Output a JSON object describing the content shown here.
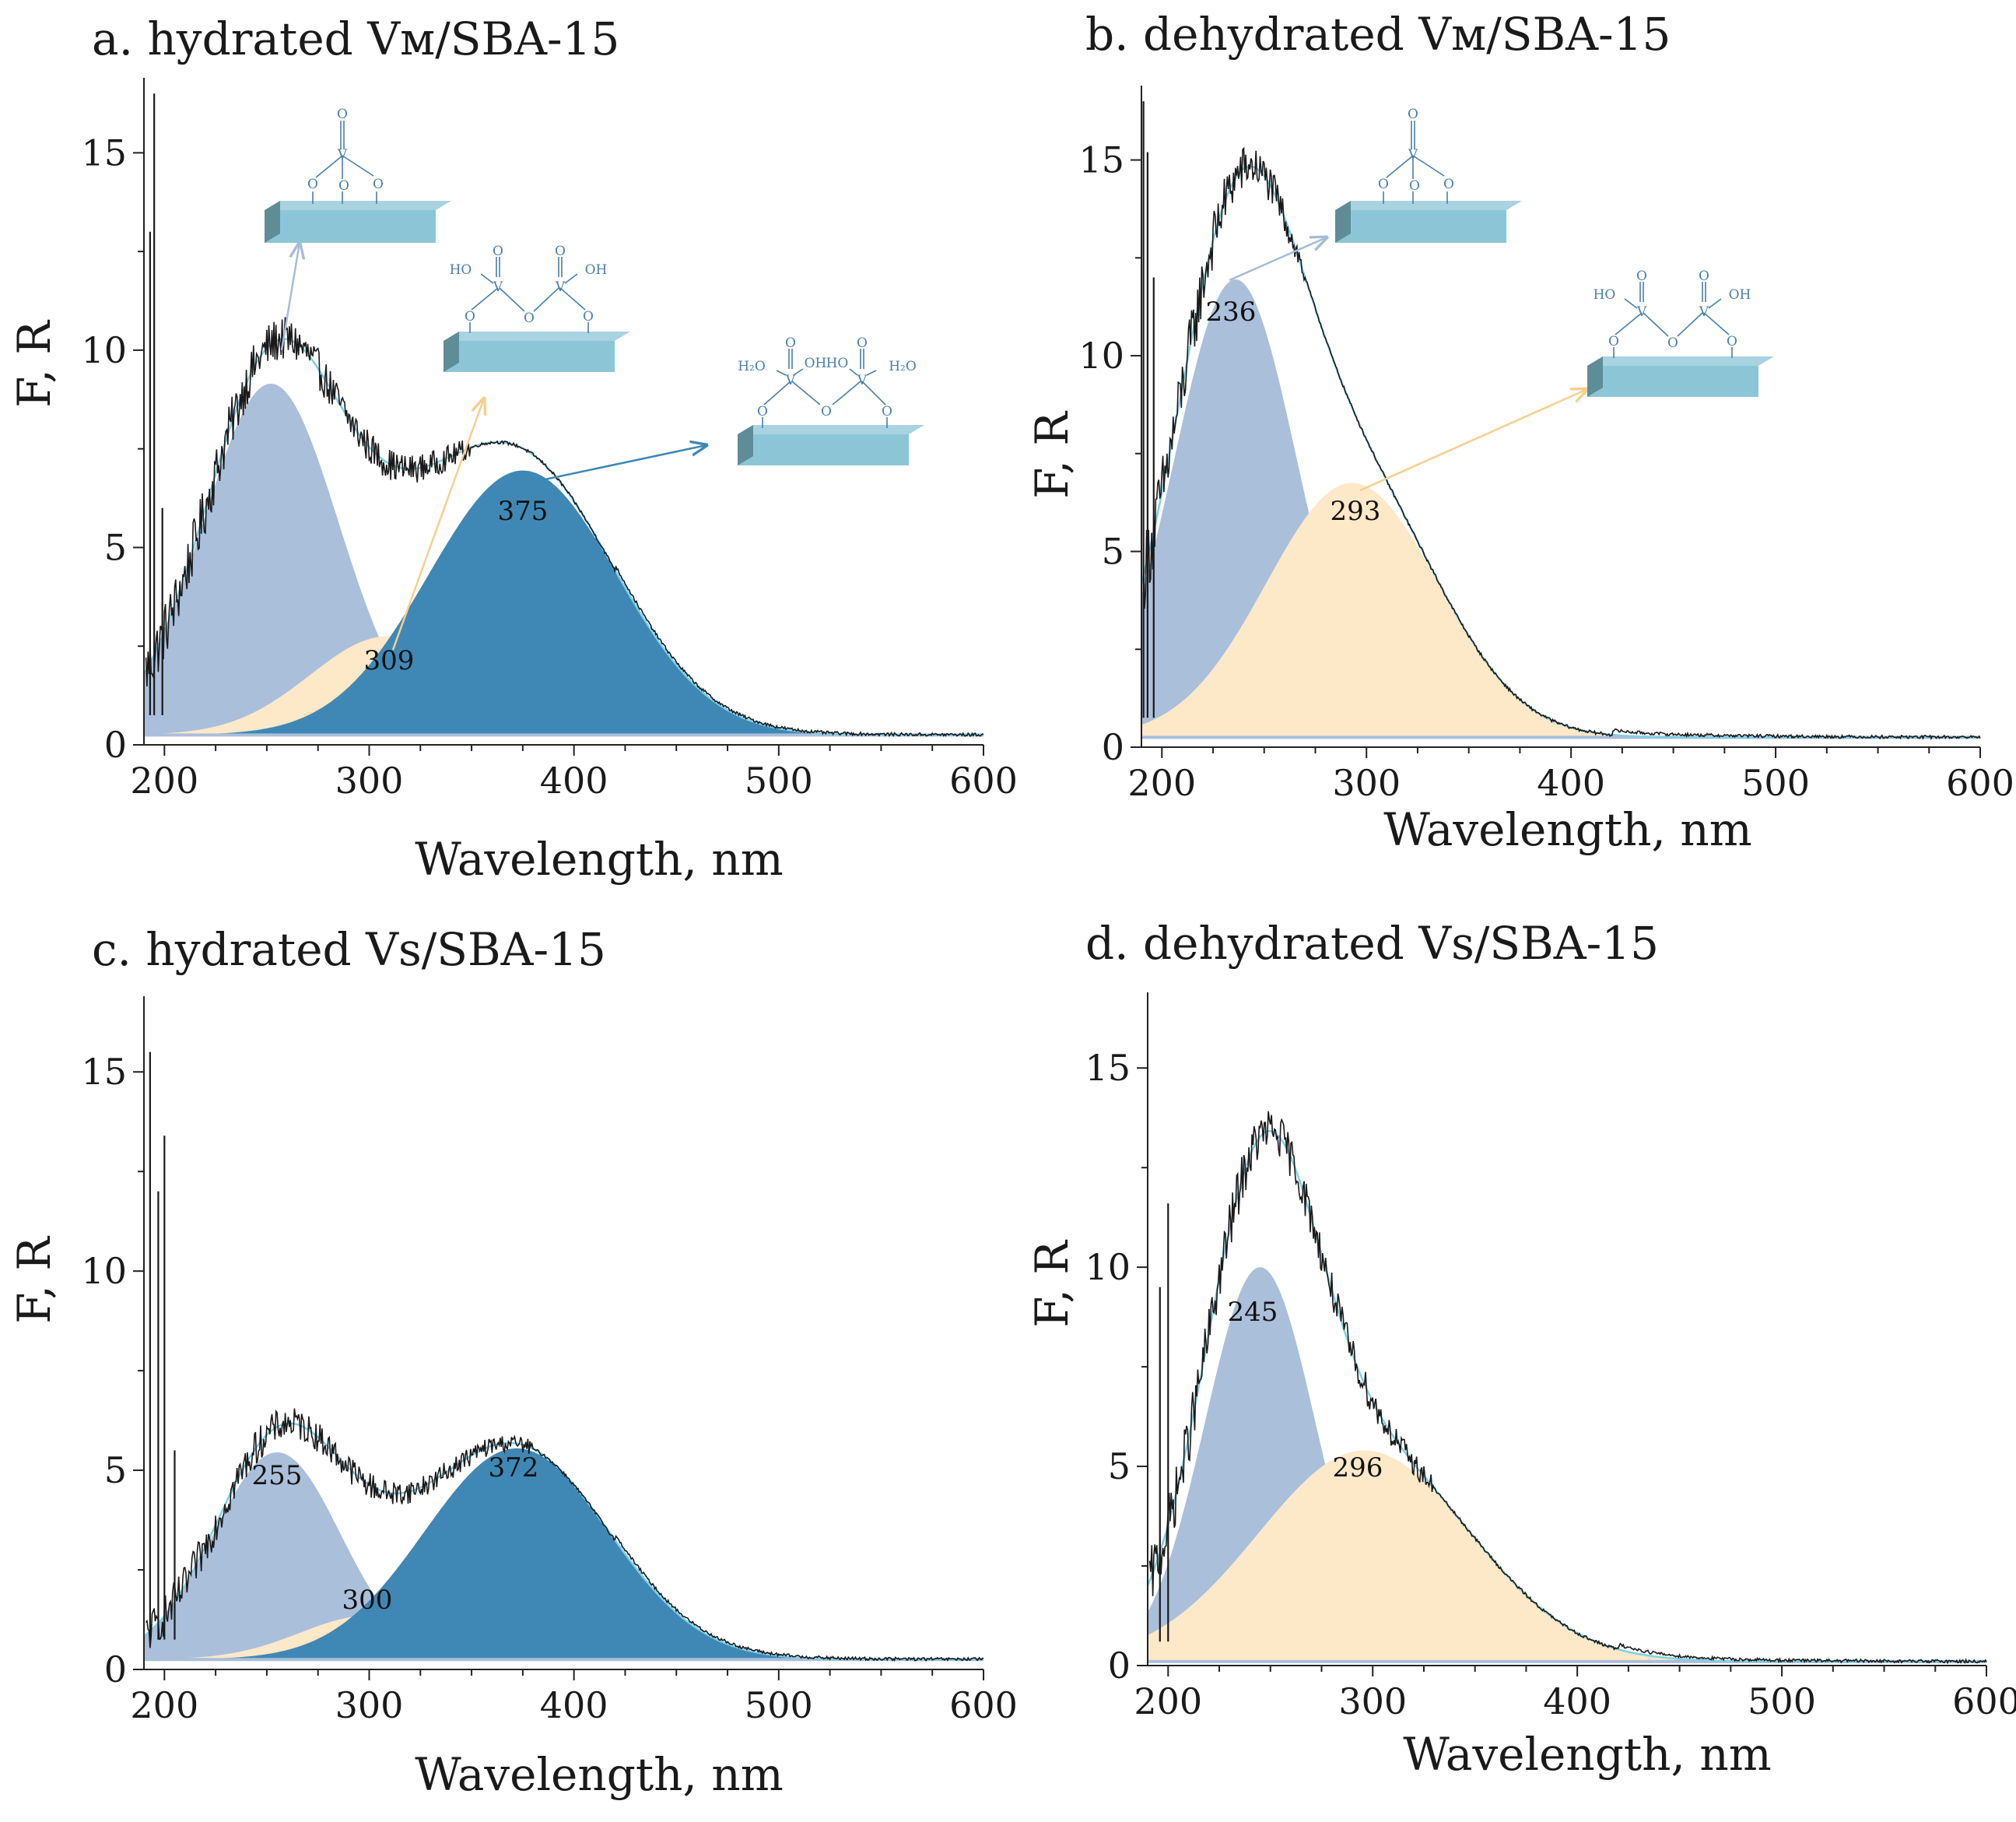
{
  "colors": {
    "peak_light_blue": "#aabfda",
    "peak_tan": "#fde8c8",
    "peak_dark_blue": "#3f88b5",
    "fit_cyan": "#7ed0e6",
    "spectrum": "#1a1a1a",
    "slab_top": "#a9d3e0",
    "slab_front": "#8cc6d6",
    "slab_side": "#5f8d97",
    "arrow_light_blue": "#a6bcd6",
    "arrow_tan": "#f6cf8f",
    "arrow_dark_blue": "#3f88b5",
    "structure": "#4a7fa8"
  },
  "structures": {
    "monomeric": {
      "o_top": "O",
      "v": "V",
      "o_bottom": [
        "O",
        "O",
        "O"
      ]
    },
    "dimeric": {
      "ho": "HO",
      "oh": "OH",
      "o_top": [
        "O",
        "O"
      ],
      "v": [
        "V",
        "V"
      ],
      "o_bridge": "O",
      "o_bottom": [
        "O",
        "O"
      ]
    },
    "hydrated_dimer": {
      "h2o_left": "H₂O",
      "oh": "OH",
      "ho": "HO",
      "h2o_right": "H₂O",
      "o_top": [
        "O",
        "O"
      ],
      "v": [
        "V",
        "V"
      ],
      "o_bridge": "O",
      "o_bottom": [
        "O",
        "O"
      ]
    }
  },
  "chart_data": [
    {
      "id": "a",
      "type": "area",
      "title": "a. hydrated Vᴍ/SBA-15",
      "xlabel": "Wavelength, nm",
      "ylabel": "F, R",
      "xlim": [
        190,
        600
      ],
      "ylim": [
        0,
        16.9
      ],
      "xticks": [
        200,
        300,
        400,
        500,
        600
      ],
      "yticks": [
        0,
        5,
        10,
        15
      ],
      "baseline": 0.25,
      "peaks": [
        {
          "center": 252,
          "height": 8.9,
          "sigma": 33,
          "color": "peak_light_blue",
          "label": ""
        },
        {
          "center": 309,
          "height": 2.5,
          "sigma": 38,
          "color": "peak_tan",
          "label": "309"
        },
        {
          "center": 375,
          "height": 6.7,
          "sigma": 46,
          "color": "peak_dark_blue",
          "label": "375"
        }
      ],
      "spikes": [
        [
          193,
          13.0
        ],
        [
          195,
          16.5
        ],
        [
          199,
          6.0
        ]
      ],
      "noise_below_x": 350,
      "noise_amplitude": 0.55
    },
    {
      "id": "b",
      "type": "area",
      "title": "b. dehydrated Vᴍ/SBA-15",
      "xlabel": "Wavelength, nm",
      "ylabel": "F, R",
      "xlim": [
        190,
        600
      ],
      "ylim": [
        0,
        16.9
      ],
      "xticks": [
        200,
        300,
        400,
        500,
        600
      ],
      "yticks": [
        0,
        5,
        10,
        15
      ],
      "baseline": 0.25,
      "peaks": [
        {
          "center": 236,
          "height": 11.7,
          "sigma": 30,
          "color": "peak_light_blue",
          "label": "236"
        },
        {
          "center": 293,
          "height": 6.5,
          "sigma": 42,
          "color": "peak_tan",
          "label": "293"
        }
      ],
      "spikes": [
        [
          191,
          16.5
        ],
        [
          193,
          15.2
        ],
        [
          196,
          12.0
        ]
      ],
      "noise_below_x": 270,
      "noise_amplitude": 0.7
    },
    {
      "id": "c",
      "type": "area",
      "title": "c. hydrated Vs/SBA-15",
      "xlabel": "Wavelength, nm",
      "ylabel": "F, R",
      "xlim": [
        190,
        600
      ],
      "ylim": [
        0,
        16.9
      ],
      "xticks": [
        200,
        300,
        400,
        500,
        600
      ],
      "yticks": [
        0,
        5,
        10,
        15
      ],
      "baseline": 0.25,
      "peaks": [
        {
          "center": 255,
          "height": 5.2,
          "sigma": 31,
          "color": "peak_light_blue",
          "label": "255"
        },
        {
          "center": 300,
          "height": 1.1,
          "sigma": 34,
          "color": "peak_tan",
          "label": "300"
        },
        {
          "center": 372,
          "height": 5.3,
          "sigma": 45,
          "color": "peak_dark_blue",
          "label": "372"
        }
      ],
      "spikes": [
        [
          193,
          15.5
        ],
        [
          197,
          12.0
        ],
        [
          200,
          13.4
        ],
        [
          205,
          5.5
        ]
      ],
      "noise_below_x": 380,
      "noise_amplitude": 0.38
    },
    {
      "id": "d",
      "type": "area",
      "title": "d. dehydrated Vs/SBA-15",
      "xlabel": "Wavelength, nm",
      "ylabel": "F, R",
      "xlim": [
        190,
        600
      ],
      "ylim": [
        0,
        16.9
      ],
      "xticks": [
        200,
        300,
        400,
        500,
        600
      ],
      "yticks": [
        0,
        5,
        10,
        15
      ],
      "baseline": 0.1,
      "peaks": [
        {
          "center": 245,
          "height": 9.9,
          "sigma": 27,
          "color": "peak_light_blue",
          "label": "245"
        },
        {
          "center": 296,
          "height": 5.3,
          "sigma": 52,
          "color": "peak_tan",
          "label": "296"
        }
      ],
      "spikes": [
        [
          196,
          9.5
        ],
        [
          200,
          11.6
        ]
      ],
      "noise_below_x": 330,
      "noise_amplitude": 0.55
    }
  ]
}
